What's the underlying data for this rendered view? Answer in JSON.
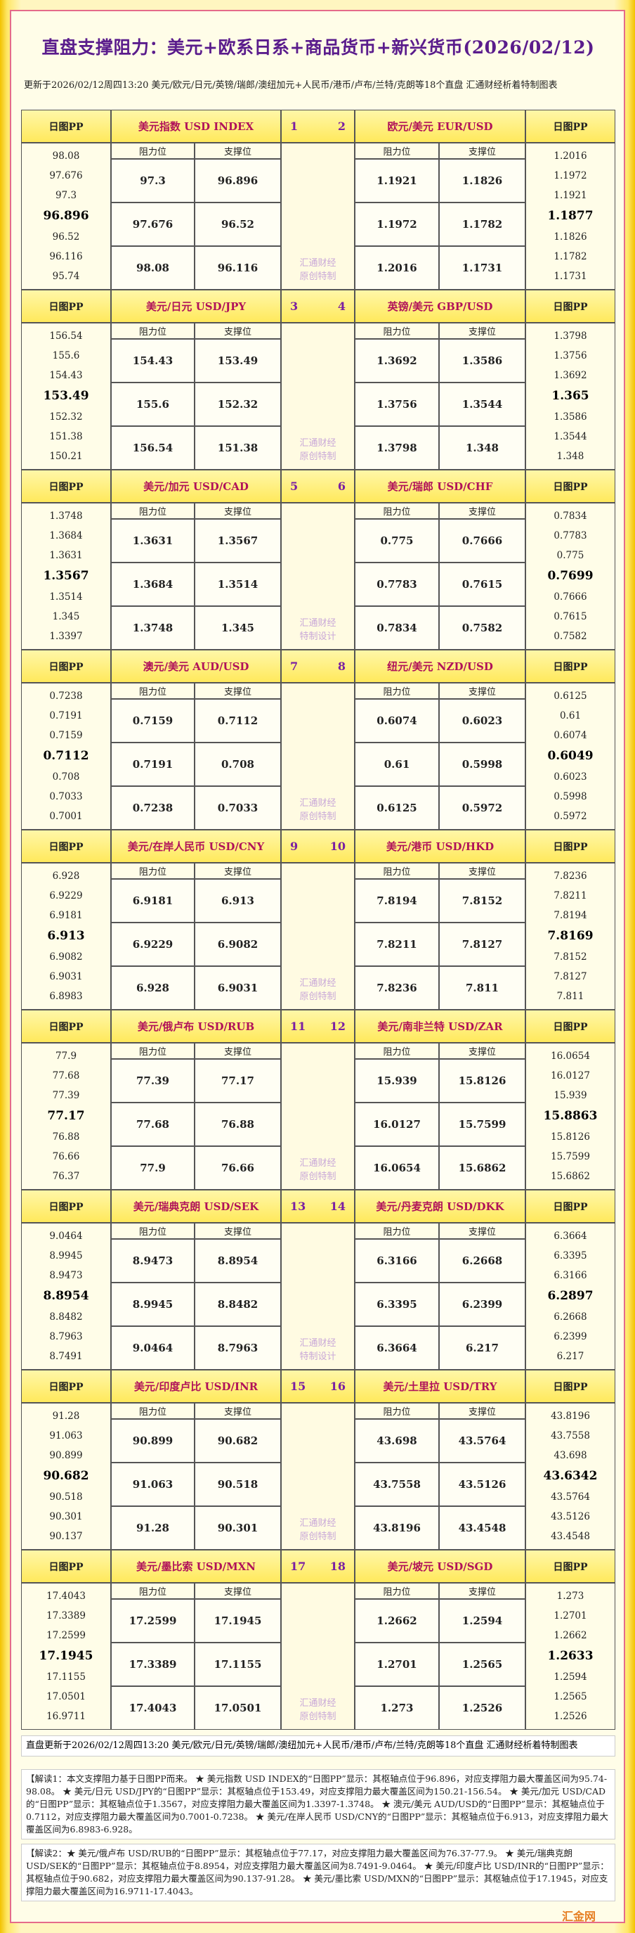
{
  "header": {
    "title": "直盘支撑阻力：美元+欧系日系+商品货币+新兴货币(2026/02/12)",
    "update": "更新于2026/02/12周四13:20 美元/欧元/日元/英镑/瑞郎/澳纽加元+人民币/港币/卢布/兰特/克朗等18个直盘 汇通财经析着特制图表"
  },
  "columns": {
    "pp": "日图PP",
    "resistance": "阻力位",
    "support": "支撑位"
  },
  "blocks": [
    {
      "left": {
        "name": "美元指数 USD INDEX",
        "number": 1,
        "pp": [
          98.08,
          97.676,
          97.3,
          96.896,
          96.52,
          96.116,
          95.74
        ],
        "rows": [
          [
            97.3,
            96.896
          ],
          [
            97.676,
            96.52
          ],
          [
            98.08,
            96.116
          ]
        ]
      },
      "right": {
        "name": "欧元/美元 EUR/USD",
        "number": 2,
        "pp": [
          1.2016,
          1.1972,
          1.1921,
          1.1877,
          1.1826,
          1.1782,
          1.1731
        ],
        "rows": [
          [
            1.1921,
            1.1826
          ],
          [
            1.1972,
            1.1782
          ],
          [
            1.2016,
            1.1731
          ]
        ]
      },
      "watermark": [
        "汇通财经",
        "原创特制"
      ]
    },
    {
      "left": {
        "name": "美元/日元 USD/JPY",
        "number": 3,
        "pp": [
          156.54,
          155.6,
          154.43,
          153.49,
          152.32,
          151.38,
          150.21
        ],
        "rows": [
          [
            154.43,
            153.49
          ],
          [
            155.6,
            152.32
          ],
          [
            156.54,
            151.38
          ]
        ]
      },
      "right": {
        "name": "英镑/美元 GBP/USD",
        "number": 4,
        "pp": [
          1.3798,
          1.3756,
          1.3692,
          1.365,
          1.3586,
          1.3544,
          1.348
        ],
        "rows": [
          [
            1.3692,
            1.3586
          ],
          [
            1.3756,
            1.3544
          ],
          [
            1.3798,
            1.348
          ]
        ]
      },
      "watermark": [
        "汇通财经",
        "原创特制"
      ]
    },
    {
      "left": {
        "name": "美元/加元 USD/CAD",
        "number": 5,
        "pp": [
          1.3748,
          1.3684,
          1.3631,
          1.3567,
          1.3514,
          1.345,
          1.3397
        ],
        "rows": [
          [
            1.3631,
            1.3567
          ],
          [
            1.3684,
            1.3514
          ],
          [
            1.3748,
            1.345
          ]
        ]
      },
      "right": {
        "name": "美元/瑞郎 USD/CHF",
        "number": 6,
        "pp": [
          0.7834,
          0.7783,
          0.775,
          0.7699,
          0.7666,
          0.7615,
          0.7582
        ],
        "rows": [
          [
            0.775,
            0.7666
          ],
          [
            0.7783,
            0.7615
          ],
          [
            0.7834,
            0.7582
          ]
        ]
      },
      "watermark": [
        "汇通财经",
        "特制设计"
      ]
    },
    {
      "left": {
        "name": "澳元/美元 AUD/USD",
        "number": 7,
        "pp": [
          0.7238,
          0.7191,
          0.7159,
          0.7112,
          0.708,
          0.7033,
          0.7001
        ],
        "rows": [
          [
            0.7159,
            0.7112
          ],
          [
            0.7191,
            0.708
          ],
          [
            0.7238,
            0.7033
          ]
        ]
      },
      "right": {
        "name": "纽元/美元 NZD/USD",
        "number": 8,
        "pp": [
          0.6125,
          0.61,
          0.6074,
          0.6049,
          0.6023,
          0.5998,
          0.5972
        ],
        "rows": [
          [
            0.6074,
            0.6023
          ],
          [
            0.61,
            0.5998
          ],
          [
            0.6125,
            0.5972
          ]
        ]
      },
      "watermark": [
        "汇通财经",
        "原创特制"
      ]
    },
    {
      "left": {
        "name": "美元/在岸人民币 USD/CNY",
        "number": 9,
        "pp": [
          6.928,
          6.9229,
          6.9181,
          6.913,
          6.9082,
          6.9031,
          6.8983
        ],
        "rows": [
          [
            6.9181,
            6.913
          ],
          [
            6.9229,
            6.9082
          ],
          [
            6.928,
            6.9031
          ]
        ]
      },
      "right": {
        "name": "美元/港币 USD/HKD",
        "number": 10,
        "pp": [
          7.8236,
          7.8211,
          7.8194,
          7.8169,
          7.8152,
          7.8127,
          7.811
        ],
        "rows": [
          [
            7.8194,
            7.8152
          ],
          [
            7.8211,
            7.8127
          ],
          [
            7.8236,
            7.811
          ]
        ]
      },
      "watermark": [
        "汇通财经",
        "原创特制"
      ]
    },
    {
      "left": {
        "name": "美元/俄卢布 USD/RUB",
        "number": 11,
        "pp": [
          77.9,
          77.68,
          77.39,
          77.17,
          76.88,
          76.66,
          76.37
        ],
        "rows": [
          [
            77.39,
            77.17
          ],
          [
            77.68,
            76.88
          ],
          [
            77.9,
            76.66
          ]
        ]
      },
      "right": {
        "name": "美元/南非兰特 USD/ZAR",
        "number": 12,
        "pp": [
          16.0654,
          16.0127,
          15.939,
          15.8863,
          15.8126,
          15.7599,
          15.6862
        ],
        "rows": [
          [
            15.939,
            15.8126
          ],
          [
            16.0127,
            15.7599
          ],
          [
            16.0654,
            15.6862
          ]
        ]
      },
      "watermark": [
        "汇通财经",
        "原创特制"
      ]
    },
    {
      "left": {
        "name": "美元/瑞典克朗 USD/SEK",
        "number": 13,
        "pp": [
          9.0464,
          8.9945,
          8.9473,
          8.8954,
          8.8482,
          8.7963,
          8.7491
        ],
        "rows": [
          [
            8.9473,
            8.8954
          ],
          [
            8.9945,
            8.8482
          ],
          [
            9.0464,
            8.7963
          ]
        ]
      },
      "right": {
        "name": "美元/丹麦克朗 USD/DKK",
        "number": 14,
        "pp": [
          6.3664,
          6.3395,
          6.3166,
          6.2897,
          6.2668,
          6.2399,
          6.217
        ],
        "rows": [
          [
            6.3166,
            6.2668
          ],
          [
            6.3395,
            6.2399
          ],
          [
            6.3664,
            6.217
          ]
        ]
      },
      "watermark": [
        "汇通财经",
        "特制设计"
      ]
    },
    {
      "left": {
        "name": "美元/印度卢比 USD/INR",
        "number": 15,
        "pp": [
          91.28,
          91.063,
          90.899,
          90.682,
          90.518,
          90.301,
          90.137
        ],
        "rows": [
          [
            90.899,
            90.682
          ],
          [
            91.063,
            90.518
          ],
          [
            91.28,
            90.301
          ]
        ]
      },
      "right": {
        "name": "美元/土里拉 USD/TRY",
        "number": 16,
        "pp": [
          43.8196,
          43.7558,
          43.698,
          43.6342,
          43.5764,
          43.5126,
          43.4548
        ],
        "rows": [
          [
            43.698,
            43.5764
          ],
          [
            43.7558,
            43.5126
          ],
          [
            43.8196,
            43.4548
          ]
        ]
      },
      "watermark": [
        "汇通财经",
        "原创特制"
      ]
    },
    {
      "left": {
        "name": "美元/墨比索 USD/MXN",
        "number": 17,
        "pp": [
          17.4043,
          17.3389,
          17.2599,
          17.1945,
          17.1155,
          17.0501,
          16.9711
        ],
        "rows": [
          [
            17.2599,
            17.1945
          ],
          [
            17.3389,
            17.1155
          ],
          [
            17.4043,
            17.0501
          ]
        ]
      },
      "right": {
        "name": "美元/坡元 USD/SGD",
        "number": 18,
        "pp": [
          1.273,
          1.2701,
          1.2662,
          1.2633,
          1.2594,
          1.2565,
          1.2526
        ],
        "rows": [
          [
            1.2662,
            1.2594
          ],
          [
            1.2701,
            1.2565
          ],
          [
            1.273,
            1.2526
          ]
        ]
      },
      "watermark": [
        "汇通财经",
        "原创特制"
      ]
    }
  ],
  "footer": {
    "update": "直盘更新于2026/02/12周四13:20 美元/欧元/日元/英镑/瑞郎/澳纽加元+人民币/港币/卢布/兰特/克朗等18个直盘 汇通财经析着特制图表",
    "notes": [
      "【解读1：本文支撑阻力基于日图PP而来。 ★ 美元指数 USD INDEX的“日图PP”显示：其枢轴点位于96.896，对应支撑阻力最大覆盖区间为95.74-98.08。 ★ 美元/日元 USD/JPY的“日图PP”显示：其枢轴点位于153.49，对应支撑阻力最大覆盖区间为150.21-156.54。 ★ 美元/加元 USD/CAD的“日图PP”显示：其枢轴点位于1.3567，对应支撑阻力最大覆盖区间为1.3397-1.3748。 ★ 澳元/美元 AUD/USD的“日图PP”显示：其枢轴点位于0.7112，对应支撑阻力最大覆盖区间为0.7001-0.7238。 ★ 美元/在岸人民币 USD/CNY的“日图PP”显示：其枢轴点位于6.913，对应支撑阻力最大覆盖区间为6.8983-6.928。",
      "【解读2：★ 美元/俄卢布 USD/RUB的“日图PP”显示：其枢轴点位于77.17，对应支撑阻力最大覆盖区间为76.37-77.9。 ★ 美元/瑞典克朗 USD/SEK的“日图PP”显示：其枢轴点位于8.8954，对应支撑阻力最大覆盖区间为8.7491-9.0464。 ★ 美元/印度卢比 USD/INR的“日图PP”显示：其枢轴点位于90.682，对应支撑阻力最大覆盖区间为90.137-91.28。 ★ 美元/墨比索 USD/MXN的“日图PP”显示：其枢轴点位于17.1945，对应支撑阻力最大覆盖区间为16.9711-17.4043。"
    ]
  },
  "logo": "汇金网"
}
